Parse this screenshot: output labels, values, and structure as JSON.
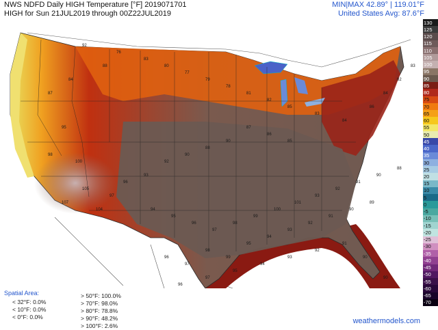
{
  "header": {
    "title_line1": "NWS NDFD Daily HIGH Temperature [°F]  2019071701",
    "title_line2": "HIGH for Sun 21JUL2019 through 00Z22JUL2019",
    "minmax": "MIN|MAX 42.89° | 119.01°F",
    "us_avg": "United States Avg: 87.6°F"
  },
  "legend": {
    "labels": [
      "130",
      "125",
      "120",
      "115",
      "110",
      "105",
      "100",
      "95",
      "90",
      "85",
      "80",
      "75",
      "70",
      "65",
      "60",
      "55",
      "50",
      "45",
      "40",
      "35",
      "30",
      "25",
      "20",
      "15",
      "10",
      "5",
      "0",
      "-5",
      "-10",
      "-15",
      "-20",
      "-25",
      "-30",
      "-35",
      "-40",
      "-45",
      "-50",
      "-55",
      "-60",
      "-65",
      "-70"
    ],
    "colors": [
      "#1a1a1a",
      "#3a3a3a",
      "#5a4b4b",
      "#6e5a5a",
      "#8a7070",
      "#b09a9a",
      "#c4b0b0",
      "#8a7565",
      "#6b5a4e",
      "#7a1e14",
      "#b0281a",
      "#d84a12",
      "#f07a10",
      "#f5a018",
      "#f6c81e",
      "#f3e86a",
      "#e8ecb0",
      "#3848a8",
      "#4a66c8",
      "#6a8ad8",
      "#8eb0e0",
      "#a8cce4",
      "#c0e0e4",
      "#7ab8c8",
      "#3a8aa8",
      "#1a6a88",
      "#2a9a9a",
      "#4aa8a0",
      "#78c0b8",
      "#a0d4d0",
      "#c0e4e0",
      "#e0c0d8",
      "#d090c0",
      "#b060a8",
      "#904090",
      "#702878",
      "#501860",
      "#3a1048",
      "#280838",
      "#180428",
      "#080010"
    ]
  },
  "map_labels": [
    [
      "92",
      120,
      40
    ],
    [
      "88",
      150,
      70
    ],
    [
      "84",
      100,
      90
    ],
    [
      "87",
      70,
      110
    ],
    [
      "76",
      170,
      50
    ],
    [
      "83",
      210,
      60
    ],
    [
      "80",
      240,
      70
    ],
    [
      "77",
      270,
      80
    ],
    [
      "79",
      300,
      90
    ],
    [
      "78",
      330,
      100
    ],
    [
      "81",
      360,
      110
    ],
    [
      "82",
      390,
      120
    ],
    [
      "85",
      420,
      130
    ],
    [
      "83",
      460,
      140
    ],
    [
      "84",
      500,
      150
    ],
    [
      "86",
      540,
      130
    ],
    [
      "84",
      560,
      110
    ],
    [
      "82",
      580,
      90
    ],
    [
      "83",
      600,
      70
    ],
    [
      "95",
      90,
      160
    ],
    [
      "98",
      70,
      200
    ],
    [
      "100",
      110,
      210
    ],
    [
      "105",
      120,
      250
    ],
    [
      "107",
      90,
      270
    ],
    [
      "104",
      140,
      280
    ],
    [
      "97",
      160,
      260
    ],
    [
      "96",
      180,
      240
    ],
    [
      "93",
      210,
      230
    ],
    [
      "92",
      240,
      210
    ],
    [
      "90",
      270,
      200
    ],
    [
      "88",
      300,
      190
    ],
    [
      "90",
      330,
      180
    ],
    [
      "87",
      360,
      160
    ],
    [
      "86",
      390,
      170
    ],
    [
      "85",
      420,
      180
    ],
    [
      "94",
      220,
      280
    ],
    [
      "95",
      250,
      290
    ],
    [
      "96",
      280,
      300
    ],
    [
      "97",
      310,
      310
    ],
    [
      "98",
      340,
      300
    ],
    [
      "99",
      370,
      290
    ],
    [
      "100",
      400,
      280
    ],
    [
      "101",
      430,
      270
    ],
    [
      "93",
      460,
      260
    ],
    [
      "92",
      490,
      250
    ],
    [
      "91",
      520,
      240
    ],
    [
      "90",
      550,
      230
    ],
    [
      "88",
      580,
      220
    ],
    [
      "96",
      240,
      350
    ],
    [
      "97",
      270,
      360
    ],
    [
      "98",
      300,
      340
    ],
    [
      "99",
      330,
      350
    ],
    [
      "95",
      360,
      330
    ],
    [
      "94",
      390,
      320
    ],
    [
      "93",
      420,
      310
    ],
    [
      "92",
      450,
      300
    ],
    [
      "91",
      480,
      290
    ],
    [
      "90",
      510,
      280
    ],
    [
      "89",
      540,
      270
    ],
    [
      "96",
      260,
      390
    ],
    [
      "97",
      300,
      380
    ],
    [
      "95",
      340,
      370
    ],
    [
      "94",
      380,
      360
    ],
    [
      "93",
      420,
      350
    ],
    [
      "92",
      460,
      340
    ],
    [
      "91",
      500,
      330
    ],
    [
      "90",
      530,
      350
    ],
    [
      "90",
      560,
      380
    ],
    [
      "91",
      580,
      410
    ],
    [
      "95",
      300,
      410
    ],
    [
      "94",
      320,
      420
    ]
  ],
  "spatial_area": {
    "title": "Spatial Area:",
    "col1": [
      "< 32°F: 0.0%",
      "< 10°F: 0.0%",
      "< 0°F: 0.0%"
    ],
    "col2": [
      "> 50°F: 100.0%",
      "> 70°F: 98.0%",
      "> 80°F: 78.8%",
      "> 90°F: 48.2%",
      "> 100°F: 2.6%"
    ]
  },
  "credit": "weathermodels.com"
}
